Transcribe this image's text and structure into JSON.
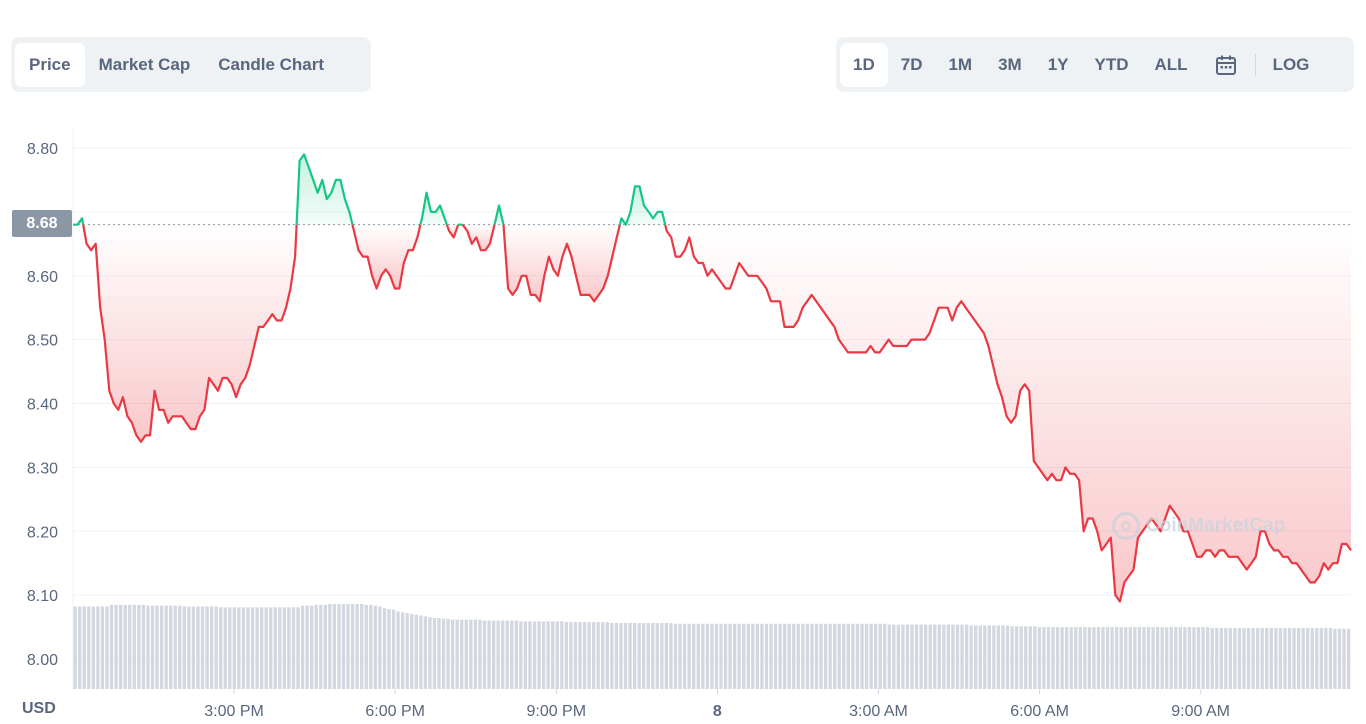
{
  "tabs": [
    "Price",
    "Market Cap",
    "Candle Chart"
  ],
  "active_tab": "Price",
  "ranges": [
    "1D",
    "7D",
    "1M",
    "3M",
    "1Y",
    "YTD",
    "ALL"
  ],
  "active_range": "1D",
  "log_label": "LOG",
  "current_price_label": "8.68",
  "currency_label": "USD",
  "watermark": "CoinMarketCap",
  "colors": {
    "up": "#16c784",
    "down": "#ea3943",
    "baseline": "#8c97a6",
    "volume": "#d3d8e0",
    "grid": "#eff2f5",
    "text": "#58667e"
  },
  "chart_data": {
    "type": "line",
    "ylim": [
      8.0,
      8.8
    ],
    "yticks": [
      8.0,
      8.1,
      8.2,
      8.3,
      8.4,
      8.5,
      8.6,
      8.7,
      8.8
    ],
    "ytick_labels": [
      "8.00",
      "8.10",
      "8.20",
      "8.30",
      "8.40",
      "8.50",
      "8.60",
      "",
      "8.80"
    ],
    "xtick_labels": [
      "3:00 PM",
      "6:00 PM",
      "9:00 PM",
      "8",
      "3:00 AM",
      "6:00 AM",
      "9:00 AM"
    ],
    "baseline": 8.68,
    "x_start_hour": 12.0,
    "x_end_hour": 35.8,
    "series": [
      {
        "values": [
          8.68,
          8.68,
          8.69,
          8.65,
          8.64,
          8.65,
          8.55,
          8.5,
          8.42,
          8.4,
          8.39,
          8.41,
          8.38,
          8.37,
          8.35,
          8.34,
          8.35,
          8.35,
          8.42,
          8.39,
          8.39,
          8.37,
          8.38,
          8.38,
          8.38,
          8.37,
          8.36,
          8.36,
          8.38,
          8.39,
          8.44,
          8.43,
          8.42,
          8.44,
          8.44,
          8.43,
          8.41,
          8.43,
          8.44,
          8.46,
          8.49,
          8.52,
          8.52,
          8.53,
          8.54,
          8.53,
          8.53,
          8.55,
          8.58,
          8.63,
          8.78,
          8.79,
          8.77,
          8.75,
          8.73,
          8.75,
          8.72,
          8.73,
          8.75,
          8.75,
          8.72,
          8.7,
          8.67,
          8.64,
          8.63,
          8.63,
          8.6,
          8.58,
          8.6,
          8.61,
          8.6,
          8.58,
          8.58,
          8.62,
          8.64,
          8.64,
          8.66,
          8.69,
          8.73,
          8.7,
          8.7,
          8.71,
          8.69,
          8.67,
          8.66,
          8.68,
          8.68,
          8.67,
          8.65,
          8.66,
          8.64,
          8.64,
          8.65,
          8.68,
          8.71,
          8.68,
          8.58,
          8.57,
          8.58,
          8.6,
          8.6,
          8.57,
          8.57,
          8.56,
          8.6,
          8.63,
          8.61,
          8.6,
          8.63,
          8.65,
          8.63,
          8.6,
          8.57,
          8.57,
          8.57,
          8.56,
          8.57,
          8.58,
          8.6,
          8.63,
          8.66,
          8.69,
          8.68,
          8.7,
          8.74,
          8.74,
          8.71,
          8.7,
          8.69,
          8.7,
          8.7,
          8.67,
          8.66,
          8.63,
          8.63,
          8.64,
          8.66,
          8.63,
          8.62,
          8.62,
          8.6,
          8.61,
          8.6,
          8.59,
          8.58,
          8.58,
          8.6,
          8.62,
          8.61,
          8.6,
          8.6,
          8.6,
          8.59,
          8.58,
          8.56,
          8.56,
          8.56,
          8.52,
          8.52,
          8.52,
          8.53,
          8.55,
          8.56,
          8.57,
          8.56,
          8.55,
          8.54,
          8.53,
          8.52,
          8.5,
          8.49,
          8.48,
          8.48,
          8.48,
          8.48,
          8.48,
          8.49,
          8.48,
          8.48,
          8.49,
          8.5,
          8.49,
          8.49,
          8.49,
          8.49,
          8.5,
          8.5,
          8.5,
          8.5,
          8.51,
          8.53,
          8.55,
          8.55,
          8.55,
          8.53,
          8.55,
          8.56,
          8.55,
          8.54,
          8.53,
          8.52,
          8.51,
          8.49,
          8.46,
          8.43,
          8.41,
          8.38,
          8.37,
          8.38,
          8.42,
          8.43,
          8.42,
          8.31,
          8.3,
          8.29,
          8.28,
          8.29,
          8.28,
          8.28,
          8.3,
          8.29,
          8.29,
          8.28,
          8.2,
          8.22,
          8.22,
          8.2,
          8.17,
          8.18,
          8.19,
          8.1,
          8.09,
          8.12,
          8.13,
          8.14,
          8.19,
          8.2,
          8.21,
          8.22,
          8.21,
          8.2,
          8.22,
          8.24,
          8.23,
          8.22,
          8.2,
          8.2,
          8.18,
          8.16,
          8.16,
          8.17,
          8.17,
          8.16,
          8.17,
          8.17,
          8.16,
          8.16,
          8.16,
          8.15,
          8.14,
          8.15,
          8.16,
          8.2,
          8.2,
          8.18,
          8.17,
          8.17,
          8.16,
          8.16,
          8.15,
          8.15,
          8.14,
          8.13,
          8.12,
          8.12,
          8.13,
          8.15,
          8.14,
          8.15,
          8.15,
          8.18,
          8.18,
          8.17
        ]
      }
    ],
    "volume": [
      1.0,
      1.0,
      1.0,
      1.0,
      1.0,
      1.0,
      1.0,
      1.0,
      1.02,
      1.02,
      1.02,
      1.02,
      1.02,
      1.02,
      1.02,
      1.02,
      1.01,
      1.01,
      1.01,
      1.01,
      1.01,
      1.01,
      1.01,
      1.01,
      1.0,
      1.0,
      1.0,
      1.0,
      1.0,
      1.0,
      1.0,
      1.0,
      0.99,
      0.99,
      0.99,
      0.99,
      0.99,
      0.99,
      0.99,
      0.99,
      0.99,
      0.99,
      0.99,
      0.99,
      0.99,
      0.99,
      0.99,
      0.99,
      0.99,
      0.99,
      1.01,
      1.01,
      1.01,
      1.02,
      1.02,
      1.02,
      1.03,
      1.03,
      1.03,
      1.03,
      1.03,
      1.03,
      1.03,
      1.03,
      1.02,
      1.02,
      1.01,
      1.0,
      0.98,
      0.97,
      0.96,
      0.94,
      0.93,
      0.92,
      0.91,
      0.9,
      0.89,
      0.88,
      0.87,
      0.86,
      0.86,
      0.85,
      0.85,
      0.84,
      0.84,
      0.84,
      0.84,
      0.84,
      0.84,
      0.84,
      0.83,
      0.83,
      0.83,
      0.83,
      0.83,
      0.83,
      0.83,
      0.83,
      0.82,
      0.82,
      0.82,
      0.82,
      0.82,
      0.82,
      0.82,
      0.82,
      0.82,
      0.82,
      0.81,
      0.81,
      0.81,
      0.81,
      0.81,
      0.81,
      0.81,
      0.81,
      0.81,
      0.81,
      0.8,
      0.8,
      0.8,
      0.8,
      0.8,
      0.8,
      0.8,
      0.8,
      0.8,
      0.8,
      0.8,
      0.8,
      0.8,
      0.8,
      0.79,
      0.79,
      0.79,
      0.79,
      0.79,
      0.79,
      0.79,
      0.79,
      0.79,
      0.79,
      0.79,
      0.79,
      0.79,
      0.79,
      0.79,
      0.79,
      0.79,
      0.79,
      0.79,
      0.79,
      0.79,
      0.79,
      0.79,
      0.79,
      0.79,
      0.79,
      0.79,
      0.79,
      0.79,
      0.79,
      0.79,
      0.79,
      0.79,
      0.79,
      0.79,
      0.79,
      0.79,
      0.79,
      0.79,
      0.79,
      0.79,
      0.79,
      0.79,
      0.79,
      0.79,
      0.79,
      0.79,
      0.78,
      0.78,
      0.78,
      0.78,
      0.78,
      0.78,
      0.78,
      0.78,
      0.78,
      0.78,
      0.78,
      0.78,
      0.78,
      0.78,
      0.78,
      0.78,
      0.78,
      0.78,
      0.77,
      0.77,
      0.77,
      0.77,
      0.77,
      0.77,
      0.77,
      0.77,
      0.77,
      0.76,
      0.76,
      0.76,
      0.76,
      0.76,
      0.76,
      0.75,
      0.75,
      0.75,
      0.75,
      0.75,
      0.75,
      0.75,
      0.75,
      0.75,
      0.75,
      0.75,
      0.75,
      0.75,
      0.75,
      0.75,
      0.75,
      0.75,
      0.75,
      0.75,
      0.75,
      0.75,
      0.75,
      0.75,
      0.75,
      0.75,
      0.75,
      0.75,
      0.75,
      0.75,
      0.75,
      0.75,
      0.75,
      0.75,
      0.75,
      0.75,
      0.75,
      0.75,
      0.75,
      0.74,
      0.74,
      0.74,
      0.74,
      0.74,
      0.74,
      0.74,
      0.74,
      0.74,
      0.74,
      0.74,
      0.74,
      0.74,
      0.74,
      0.74,
      0.74,
      0.74,
      0.74,
      0.74,
      0.74,
      0.74,
      0.74,
      0.74,
      0.74,
      0.74,
      0.74,
      0.74,
      0.73,
      0.73,
      0.73,
      0.73
    ]
  }
}
